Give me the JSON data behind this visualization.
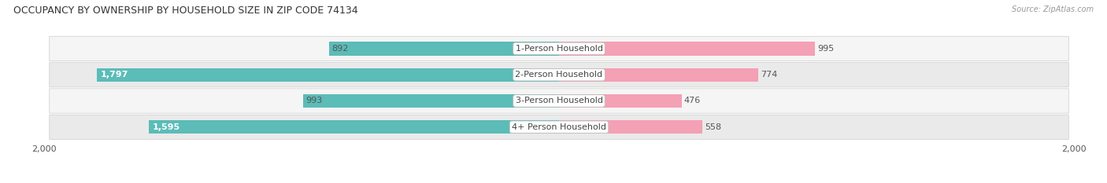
{
  "title": "OCCUPANCY BY OWNERSHIP BY HOUSEHOLD SIZE IN ZIP CODE 74134",
  "source": "Source: ZipAtlas.com",
  "categories": [
    "1-Person Household",
    "2-Person Household",
    "3-Person Household",
    "4+ Person Household"
  ],
  "owner_values": [
    892,
    1797,
    993,
    1595
  ],
  "renter_values": [
    995,
    774,
    476,
    558
  ],
  "owner_color": "#5bbcb8",
  "renter_color": "#f4a0b5",
  "axis_max": 2000,
  "bar_height": 0.52,
  "label_fontsize": 8.0,
  "title_fontsize": 9.0,
  "tick_fontsize": 8.0,
  "legend_fontsize": 8.5,
  "row_bg_light": "#f5f5f5",
  "row_bg_dark": "#eaeaea",
  "inside_label_threshold": 1200
}
